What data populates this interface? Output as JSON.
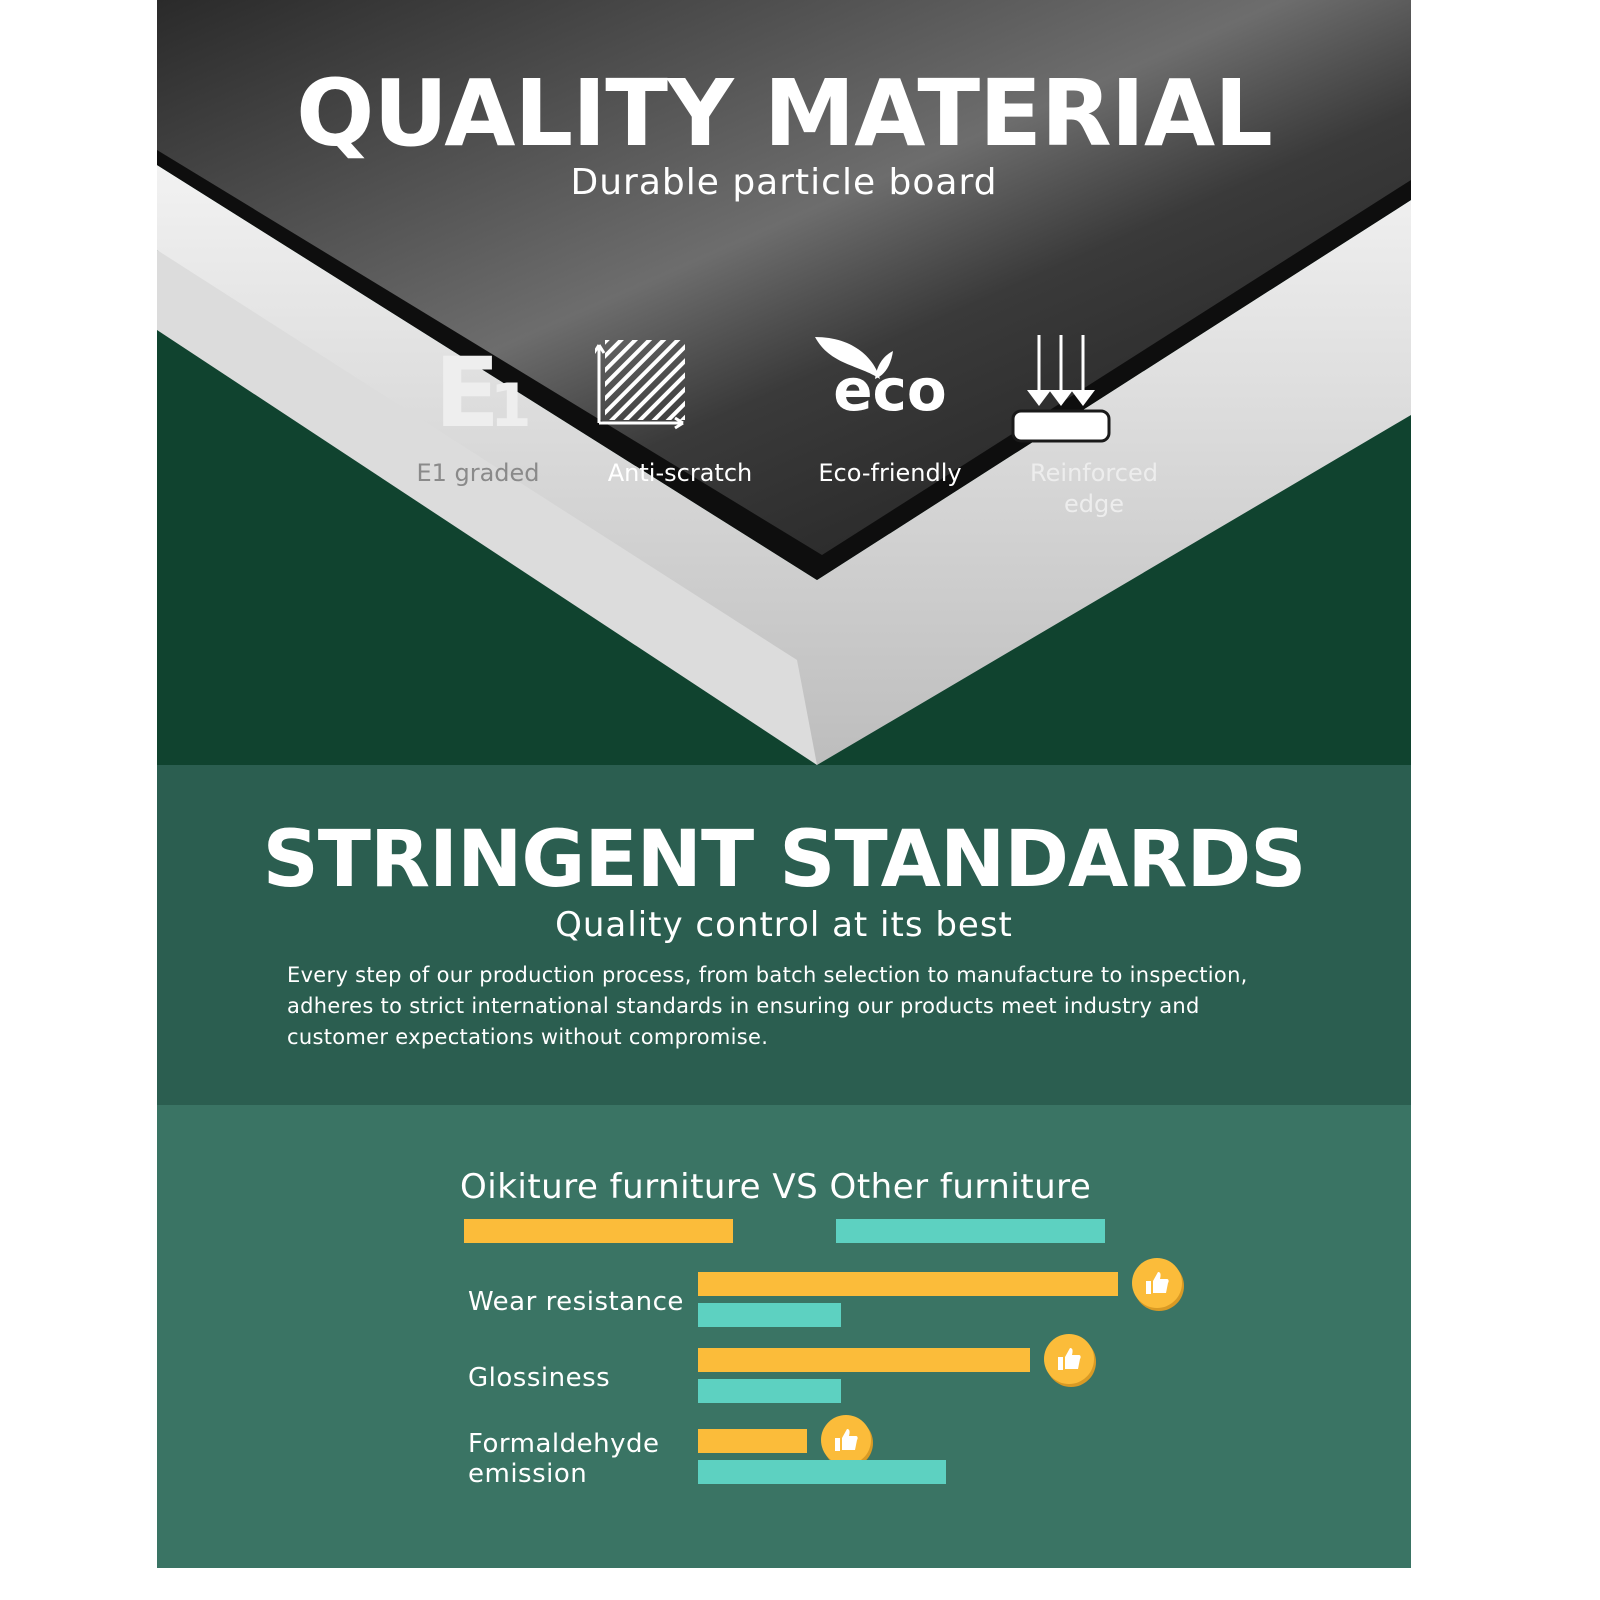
{
  "hero": {
    "title": "QUALITY MATERIAL",
    "subtitle": "Durable particle board",
    "features": [
      {
        "label": "E1 graded",
        "icon": "e1-icon",
        "icon_text": "E1"
      },
      {
        "label": "Anti-scratch",
        "icon": "anti-scratch-icon"
      },
      {
        "label": "Eco-friendly",
        "icon": "eco-leaf-icon",
        "icon_text": "eco"
      },
      {
        "label": "Reinforced edge",
        "icon": "pressure-arrows-icon"
      }
    ]
  },
  "standards": {
    "title": "STRINGENT STANDARDS",
    "subtitle": "Quality control at its best",
    "body": "Every step of our production process, from batch selection to manufacture to inspection, adheres to strict international standards in ensuring our products meet industry and customer expectations without compromise."
  },
  "chart_data": {
    "type": "bar",
    "orientation": "horizontal",
    "title": "Oikiture furniture VS Other furniture",
    "categories": [
      "Wear resistance",
      "Glossiness",
      "Formaldehyde emission"
    ],
    "series": [
      {
        "name": "Oikiture furniture",
        "color": "#fbbc3a",
        "values": [
          100,
          79,
          26
        ]
      },
      {
        "name": "Other furniture",
        "color": "#5dd1c1",
        "values": [
          34,
          34,
          59
        ]
      }
    ],
    "value_unit": "relative bar length (% of longest)",
    "winner_icon": "thumbs-up-icon"
  },
  "colors": {
    "hero_bg": "#10432f",
    "section2_bg": "#2b5e50",
    "section3_bg": "#3a7464",
    "yellow": "#fbbc3a",
    "teal": "#5dd1c1"
  }
}
